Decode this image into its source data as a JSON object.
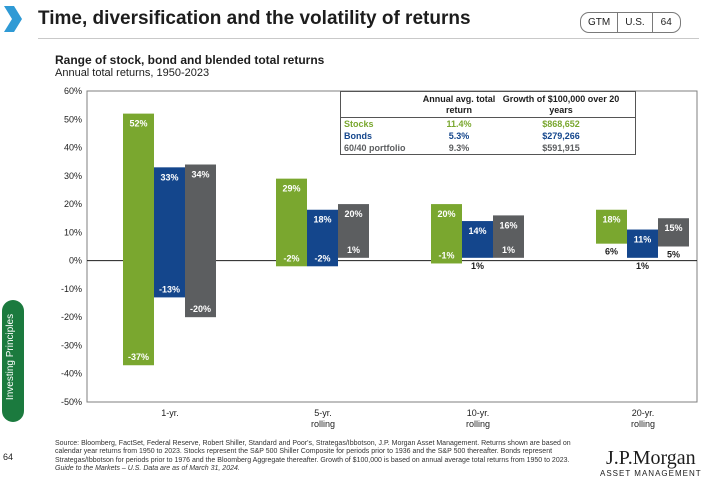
{
  "header": {
    "title": "Time, diversification and the volatility of returns",
    "tags": [
      "GTM",
      "U.S.",
      "64"
    ],
    "side_tab": "Investing Principles",
    "page_number": "64"
  },
  "colors": {
    "stocks": "#7aa72f",
    "bonds": "#14468c",
    "blend": "#5c5e60",
    "accent_green": "#1b7a3e",
    "chevron": "#2f9ad5"
  },
  "legend_table": {
    "headers": [
      "",
      "Annual avg. total return",
      "Growth of $100,000 over 20 years"
    ],
    "rows": [
      {
        "name": "Stocks",
        "avg": "11.4%",
        "growth": "$868,652",
        "color": "#7aa72f"
      },
      {
        "name": "Bonds",
        "avg": "5.3%",
        "growth": "$279,266",
        "color": "#14468c"
      },
      {
        "name": "60/40 portfolio",
        "avg": "9.3%",
        "growth": "$591,915",
        "color": "#5c5e60"
      }
    ]
  },
  "source": {
    "text": "Source: Bloomberg, FactSet, Federal Reserve, Robert Shiller, Standard and Poor's, Strategas/Ibbotson, J.P. Morgan Asset Management. Returns shown are based on calendar year returns from 1950 to 2023. Stocks represent the S&P 500 Shiller Composite for periods prior to 1936 and the S&P 500 thereafter. Bonds represent Strategas/Ibbotson for periods prior to 1976 and the Bloomberg Aggregate thereafter. Growth of $100,000 is based on annual average total returns from 1950 to 2023.",
    "guide": "Guide to the Markets – U.S. Data are as of March 31, 2024."
  },
  "logo": {
    "name": "J.P.Morgan",
    "sub": "ASSET MANAGEMENT"
  },
  "chart_data": {
    "type": "bar",
    "title": "Range of stock, bond and blended total returns",
    "subtitle": "Annual total returns, 1950-2023",
    "categories": [
      "1-yr.",
      "5-yr. rolling",
      "10-yr. rolling",
      "20-yr. rolling"
    ],
    "ylim": [
      -50,
      60
    ],
    "yticks": [
      -50,
      -40,
      -30,
      -20,
      -10,
      0,
      10,
      20,
      30,
      40,
      50,
      60
    ],
    "series": [
      {
        "name": "Stocks",
        "max": [
          52,
          29,
          20,
          18
        ],
        "min": [
          -37,
          -2,
          -1,
          6
        ]
      },
      {
        "name": "Bonds",
        "max": [
          33,
          18,
          14,
          11
        ],
        "min": [
          -13,
          -2,
          1,
          1
        ]
      },
      {
        "name": "60/40 portfolio",
        "max": [
          34,
          20,
          16,
          15
        ],
        "min": [
          -20,
          1,
          1,
          5
        ]
      }
    ],
    "max_labels": [
      [
        "52%",
        "33%",
        "34%"
      ],
      [
        "29%",
        "18%",
        "20%"
      ],
      [
        "20%",
        "14%",
        "16%"
      ],
      [
        "18%",
        "11%",
        "15%"
      ]
    ],
    "min_labels": [
      [
        "-37%",
        "-13%",
        "-20%"
      ],
      [
        "-2%",
        "-2%",
        "1%"
      ],
      [
        "-1%",
        "1%",
        "1%"
      ],
      [
        "6%",
        "1%",
        "5%"
      ]
    ]
  }
}
